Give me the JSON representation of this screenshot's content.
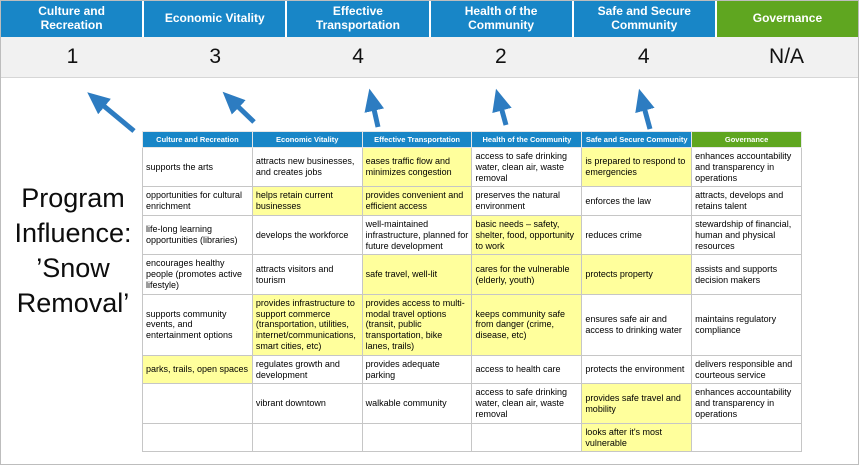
{
  "title": "Program Influence: ’Snow Removal’",
  "colors": {
    "header_blue": "#1886c7",
    "header_green": "#5fa620",
    "highlight_yellow": "#ffff9c",
    "score_band_gray": "#f1f1f1",
    "arrow_blue": "#2d7cc1"
  },
  "scoreboard": {
    "columns": [
      {
        "label": "Culture and Recreation",
        "score": "1",
        "theme": "blue"
      },
      {
        "label": "Economic Vitality",
        "score": "3",
        "theme": "blue"
      },
      {
        "label": "Effective Transportation",
        "score": "4",
        "theme": "blue"
      },
      {
        "label": "Health of the Community",
        "score": "2",
        "theme": "blue"
      },
      {
        "label": "Safe and Secure Community",
        "score": "4",
        "theme": "blue"
      },
      {
        "label": "Governance",
        "score": "N/A",
        "theme": "green"
      }
    ]
  },
  "matrix": {
    "headers": [
      {
        "label": "Culture and Recreation",
        "theme": "blue"
      },
      {
        "label": "Economic Vitality",
        "theme": "blue"
      },
      {
        "label": "Effective Transportation",
        "theme": "blue"
      },
      {
        "label": "Health of the Community",
        "theme": "blue"
      },
      {
        "label": "Safe and Secure Community",
        "theme": "blue"
      },
      {
        "label": "Governance",
        "theme": "green"
      }
    ],
    "rows": [
      [
        {
          "text": "supports the arts",
          "highlight": false
        },
        {
          "text": "attracts new businesses, and creates jobs",
          "highlight": false
        },
        {
          "text": "eases traffic flow and minimizes congestion",
          "highlight": true
        },
        {
          "text": "access to safe drinking water, clean air, waste removal",
          "highlight": false
        },
        {
          "text": "is prepared to respond to emergencies",
          "highlight": true
        },
        {
          "text": "enhances accountability and transparency in operations",
          "highlight": false
        }
      ],
      [
        {
          "text": "opportunities for cultural enrichment",
          "highlight": false
        },
        {
          "text": "helps retain current businesses",
          "highlight": true
        },
        {
          "text": "provides convenient and efficient access",
          "highlight": true
        },
        {
          "text": "preserves the natural environment",
          "highlight": false
        },
        {
          "text": "enforces the law",
          "highlight": false
        },
        {
          "text": "attracts, develops and retains talent",
          "highlight": false
        }
      ],
      [
        {
          "text": "life-long learning opportunities (libraries)",
          "highlight": false
        },
        {
          "text": "develops the workforce",
          "highlight": false
        },
        {
          "text": "well-maintained infrastructure, planned for future development",
          "highlight": false
        },
        {
          "text": "basic needs – safety, shelter, food, opportunity to work",
          "highlight": true
        },
        {
          "text": "reduces crime",
          "highlight": false
        },
        {
          "text": "stewardship of financial, human and physical resources",
          "highlight": false
        }
      ],
      [
        {
          "text": "encourages healthy people (promotes active lifestyle)",
          "highlight": false
        },
        {
          "text": "attracts visitors and tourism",
          "highlight": false
        },
        {
          "text": "safe travel, well-lit",
          "highlight": true
        },
        {
          "text": "cares for the vulnerable (elderly, youth)",
          "highlight": true
        },
        {
          "text": "protects property",
          "highlight": true
        },
        {
          "text": "assists and supports decision makers",
          "highlight": false
        }
      ],
      [
        {
          "text": "supports community events, and entertainment options",
          "highlight": false
        },
        {
          "text": "provides infrastructure to support commerce (transportation, utilities, internet/communications, smart cities, etc)",
          "highlight": true
        },
        {
          "text": "provides access to multi-modal travel options (transit, public transportation, bike lanes, trails)",
          "highlight": true
        },
        {
          "text": "keeps community safe from danger (crime, disease, etc)",
          "highlight": true
        },
        {
          "text": "ensures safe air and access to drinking water",
          "highlight": false
        },
        {
          "text": "maintains regulatory compliance",
          "highlight": false
        }
      ],
      [
        {
          "text": "parks, trails, open spaces",
          "highlight": true
        },
        {
          "text": "regulates growth and development",
          "highlight": false
        },
        {
          "text": "provides adequate parking",
          "highlight": false
        },
        {
          "text": "access to health care",
          "highlight": false
        },
        {
          "text": "protects the environment",
          "highlight": false
        },
        {
          "text": "delivers responsible and courteous service",
          "highlight": false
        }
      ],
      [
        {
          "text": "",
          "highlight": false
        },
        {
          "text": "vibrant downtown",
          "highlight": false
        },
        {
          "text": "walkable community",
          "highlight": false
        },
        {
          "text": "access to safe drinking water, clean air, waste removal",
          "highlight": false
        },
        {
          "text": "provides safe travel and mobility",
          "highlight": true
        },
        {
          "text": "enhances accountability and transparency in operations",
          "highlight": false
        }
      ],
      [
        {
          "text": "",
          "highlight": false
        },
        {
          "text": "",
          "highlight": false
        },
        {
          "text": "",
          "highlight": false
        },
        {
          "text": "",
          "highlight": false
        },
        {
          "text": "looks after it's most vulnerable",
          "highlight": true
        },
        {
          "text": "",
          "highlight": false
        }
      ]
    ]
  }
}
